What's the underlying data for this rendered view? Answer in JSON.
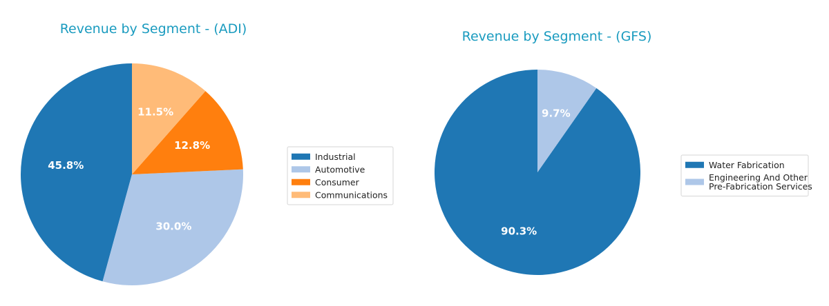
{
  "chart_data": [
    {
      "type": "pie",
      "title": "Revenue by Segment - (ADI)",
      "categories": [
        "Industrial",
        "Automotive",
        "Consumer",
        "Communications"
      ],
      "values": [
        45.8,
        30.0,
        12.8,
        11.5
      ],
      "labels": [
        "45.8%",
        "30.0%",
        "12.8%",
        "11.5%"
      ],
      "colors": [
        "#1f77b4",
        "#aec7e8",
        "#ff7f0e",
        "#ffbb78"
      ],
      "legend": [
        "Industrial",
        "Automotive",
        "Consumer",
        "Communications"
      ],
      "legend_position": "right"
    },
    {
      "type": "pie",
      "title": "Revenue by Segment - (GFS)",
      "categories": [
        "Water Fabrication",
        "Engineering And Other Pre-Fabrication Services"
      ],
      "values": [
        90.3,
        9.7
      ],
      "labels": [
        "90.3%",
        "9.7%"
      ],
      "colors": [
        "#1f77b4",
        "#aec7e8"
      ],
      "legend": [
        [
          "Water Fabrication"
        ],
        [
          "Engineering And Other",
          "Pre-Fabrication Services"
        ]
      ],
      "legend_position": "right"
    }
  ]
}
